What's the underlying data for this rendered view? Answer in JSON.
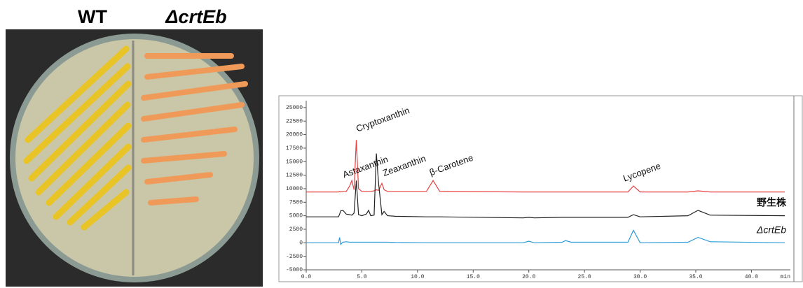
{
  "photo": {
    "labels": [
      "WT",
      "ΔcrtEb"
    ]
  },
  "chart_data": {
    "type": "line",
    "x_unit": "min",
    "x": [
      0,
      2.9,
      3.0,
      3.1,
      3.3,
      3.6,
      3.9,
      4.1,
      4.3,
      4.5,
      4.7,
      5.0,
      5.4,
      5.6,
      5.8,
      6.1,
      6.3,
      6.5,
      6.8,
      7.0,
      7.3,
      8,
      10.8,
      11.4,
      12.0,
      19.5,
      20,
      20.5,
      23,
      23.3,
      23.8,
      28.9,
      29.4,
      30.0,
      34.3,
      35.2,
      36.3,
      43
    ],
    "series": [
      {
        "color": "#e8403f",
        "values": [
          9400,
          9400,
          9500,
          9400,
          9500,
          9500,
          10500,
          11500,
          9800,
          19000,
          10000,
          9500,
          9500,
          9500,
          9500,
          9600,
          9800,
          9700,
          11000,
          9800,
          9500,
          9500,
          9500,
          11500,
          9500,
          9400,
          9400,
          9400,
          9400,
          9400,
          9400,
          9400,
          10500,
          9400,
          9400,
          9600,
          9400,
          9400
        ]
      },
      {
        "name": "野生株",
        "color": "#222222",
        "values": [
          4800,
          4800,
          5300,
          5900,
          6000,
          5300,
          5200,
          5100,
          5500,
          11500,
          5200,
          5000,
          5300,
          6000,
          5000,
          5100,
          16500,
          11000,
          5200,
          5800,
          5000,
          4900,
          4800,
          4800,
          4800,
          4600,
          4700,
          4600,
          4700,
          4700,
          4700,
          4700,
          5200,
          4800,
          5000,
          6000,
          5100,
          5000
        ]
      },
      {
        "name": "ΔcrtEb",
        "color": "#2a9ad8",
        "values": [
          0,
          0,
          1000,
          -300,
          100,
          200,
          100,
          100,
          100,
          100,
          100,
          100,
          100,
          100,
          100,
          100,
          100,
          100,
          100,
          100,
          100,
          50,
          0,
          0,
          0,
          0,
          300,
          0,
          100,
          400,
          100,
          100,
          2300,
          0,
          100,
          1000,
          200,
          0
        ]
      }
    ],
    "annotations": [
      {
        "text": "Astaxanthin",
        "x": 3.4,
        "y": 12000
      },
      {
        "text": "Cryptoxanthin",
        "x": 4.6,
        "y": 20500
      },
      {
        "text": "Zeaxanthin",
        "x": 7.0,
        "y": 12300
      },
      {
        "text": "β-Carotene",
        "x": 11.2,
        "y": 12400
      },
      {
        "text": "Lycopene",
        "x": 28.6,
        "y": 11300
      }
    ],
    "xlim": [
      0,
      43.5
    ],
    "ylim": [
      -5000,
      25500
    ],
    "xticks": [
      {
        "value": 0,
        "label": "0.0"
      },
      {
        "value": 5,
        "label": "5.0"
      },
      {
        "value": 10,
        "label": "10.0"
      },
      {
        "value": 15,
        "label": "15.0"
      },
      {
        "value": 20,
        "label": "20.0"
      },
      {
        "value": 25,
        "label": "25.0"
      },
      {
        "value": 30,
        "label": "30.0"
      },
      {
        "value": 35,
        "label": "35.0"
      },
      {
        "value": 40,
        "label": "40.0"
      }
    ],
    "yticks": [
      -5000,
      -2500,
      0,
      2500,
      5000,
      7500,
      10000,
      12500,
      15000,
      17500,
      20000,
      22500,
      25000
    ]
  }
}
